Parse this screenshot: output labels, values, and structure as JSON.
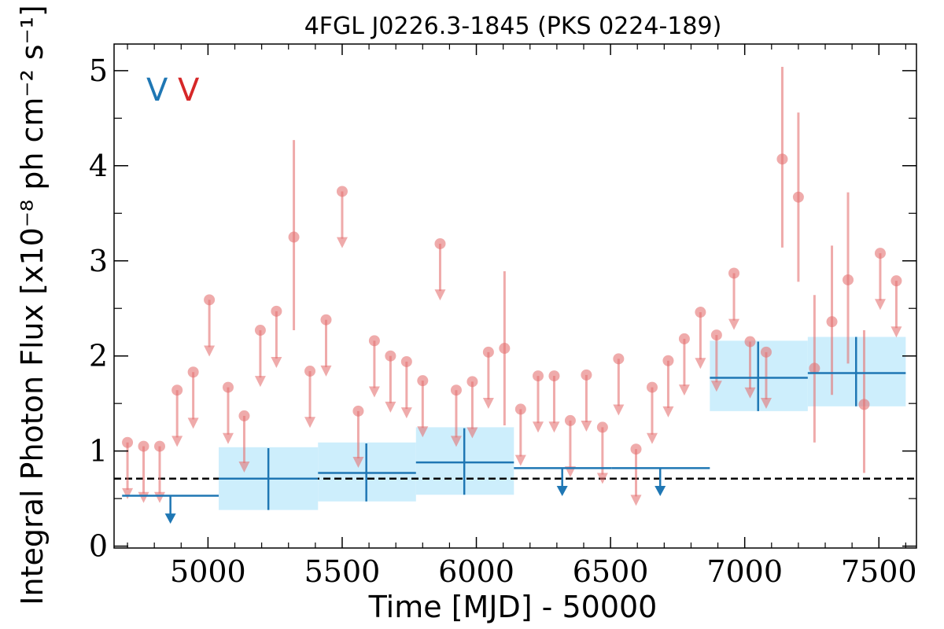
{
  "chart_data": {
    "type": "scatter",
    "title": "4FGL J0226.3-1845 (PKS 0224-189)",
    "xlabel": "Time [MJD] - 50000",
    "ylabel": "Integral Photon Flux [x10⁻⁸ ph cm⁻² s⁻¹]",
    "xlim": [
      4650,
      7640
    ],
    "ylim": [
      -0.02,
      5.28
    ],
    "xticks": [
      5000,
      5500,
      6000,
      6500,
      7000,
      7500
    ],
    "yticks": [
      0,
      1,
      2,
      3,
      4,
      5
    ],
    "grid": false,
    "legend": {
      "placement": "top-left",
      "entries": [
        {
          "symbol": "V",
          "color": "#1f77b4"
        },
        {
          "symbol": "V",
          "color": "#d62728"
        }
      ]
    },
    "reference_level": 0.71,
    "colors": {
      "fine": "#e57373",
      "coarse": "#1f77b4",
      "band": "#cdeefc",
      "reference": "#000000"
    },
    "series": [
      {
        "points": [
          {
            "x": 4700,
            "y": 1.09,
            "ul": true
          },
          {
            "x": 4760,
            "y": 1.05,
            "ul": true
          },
          {
            "x": 4820,
            "y": 1.05,
            "ul": true
          },
          {
            "x": 4885,
            "y": 1.64,
            "ul": true
          },
          {
            "x": 4945,
            "y": 1.83,
            "ul": true
          },
          {
            "x": 5005,
            "y": 2.59,
            "ul": true
          },
          {
            "x": 5075,
            "y": 1.67,
            "ul": true
          },
          {
            "x": 5135,
            "y": 1.37,
            "ul": true
          },
          {
            "x": 5195,
            "y": 2.27,
            "ul": true
          },
          {
            "x": 5255,
            "y": 2.47,
            "ul": true
          },
          {
            "x": 5320,
            "y": 3.25,
            "ul": false,
            "lo": 2.27,
            "hi": 4.27
          },
          {
            "x": 5380,
            "y": 1.84,
            "ul": true
          },
          {
            "x": 5440,
            "y": 2.38,
            "ul": true
          },
          {
            "x": 5500,
            "y": 3.73,
            "ul": true
          },
          {
            "x": 5560,
            "y": 1.42,
            "ul": true
          },
          {
            "x": 5620,
            "y": 2.16,
            "ul": true
          },
          {
            "x": 5680,
            "y": 2.0,
            "ul": true
          },
          {
            "x": 5740,
            "y": 1.94,
            "ul": true
          },
          {
            "x": 5800,
            "y": 1.74,
            "ul": true
          },
          {
            "x": 5865,
            "y": 3.18,
            "ul": true
          },
          {
            "x": 5925,
            "y": 1.64,
            "ul": true
          },
          {
            "x": 5985,
            "y": 1.73,
            "ul": true
          },
          {
            "x": 6045,
            "y": 2.04,
            "ul": true
          },
          {
            "x": 6105,
            "y": 2.08,
            "ul": false,
            "lo": 1.27,
            "hi": 2.89
          },
          {
            "x": 6165,
            "y": 1.44,
            "ul": true
          },
          {
            "x": 6230,
            "y": 1.79,
            "ul": true
          },
          {
            "x": 6290,
            "y": 1.79,
            "ul": true
          },
          {
            "x": 6350,
            "y": 1.32,
            "ul": true
          },
          {
            "x": 6410,
            "y": 1.8,
            "ul": true
          },
          {
            "x": 6470,
            "y": 1.25,
            "ul": true
          },
          {
            "x": 6530,
            "y": 1.97,
            "ul": true
          },
          {
            "x": 6595,
            "y": 1.02,
            "ul": true
          },
          {
            "x": 6655,
            "y": 1.67,
            "ul": true
          },
          {
            "x": 6715,
            "y": 1.95,
            "ul": true
          },
          {
            "x": 6775,
            "y": 2.18,
            "ul": true
          },
          {
            "x": 6835,
            "y": 2.46,
            "ul": true
          },
          {
            "x": 6895,
            "y": 2.22,
            "ul": true
          },
          {
            "x": 6960,
            "y": 2.87,
            "ul": true
          },
          {
            "x": 7020,
            "y": 2.15,
            "ul": true
          },
          {
            "x": 7080,
            "y": 2.04,
            "ul": true
          },
          {
            "x": 7140,
            "y": 4.07,
            "ul": false,
            "lo": 3.14,
            "hi": 5.04
          },
          {
            "x": 7200,
            "y": 3.67,
            "ul": false,
            "lo": 2.78,
            "hi": 4.56
          },
          {
            "x": 7260,
            "y": 1.87,
            "ul": false,
            "lo": 1.09,
            "hi": 2.64
          },
          {
            "x": 7325,
            "y": 2.36,
            "ul": false,
            "lo": 1.59,
            "hi": 3.16
          },
          {
            "x": 7385,
            "y": 2.8,
            "ul": false,
            "lo": 1.92,
            "hi": 3.72
          },
          {
            "x": 7445,
            "y": 1.49,
            "ul": false,
            "lo": 0.77,
            "hi": 2.27
          },
          {
            "x": 7505,
            "y": 3.08,
            "ul": true
          },
          {
            "x": 7565,
            "y": 2.79,
            "ul": true
          }
        ]
      },
      {
        "points": [
          {
            "x": 4860,
            "x0": 4680,
            "x1": 5040,
            "y": 0.53,
            "ul": true
          },
          {
            "x": 5225,
            "x0": 5040,
            "x1": 5410,
            "y": 0.71,
            "ul": false,
            "lo": 0.38,
            "hi": 1.03,
            "band_lo": 0.38,
            "band_hi": 1.04
          },
          {
            "x": 5590,
            "x0": 5410,
            "x1": 5775,
            "y": 0.77,
            "ul": false,
            "lo": 0.47,
            "hi": 1.08,
            "band_lo": 0.47,
            "band_hi": 1.09
          },
          {
            "x": 5955,
            "x0": 5775,
            "x1": 6140,
            "y": 0.88,
            "ul": false,
            "lo": 0.54,
            "hi": 1.24,
            "band_lo": 0.54,
            "band_hi": 1.25
          },
          {
            "x": 6320,
            "x0": 6140,
            "x1": 6505,
            "y": 0.82,
            "ul": true
          },
          {
            "x": 6685,
            "x0": 6505,
            "x1": 6870,
            "y": 0.82,
            "ul": true
          },
          {
            "x": 7050,
            "x0": 6870,
            "x1": 7235,
            "y": 1.77,
            "ul": false,
            "lo": 1.42,
            "hi": 2.15,
            "band_lo": 1.42,
            "band_hi": 2.16
          },
          {
            "x": 7415,
            "x0": 7235,
            "x1": 7600,
            "y": 1.82,
            "ul": false,
            "lo": 1.47,
            "hi": 2.2,
            "band_lo": 1.47,
            "band_hi": 2.2
          }
        ]
      }
    ]
  }
}
